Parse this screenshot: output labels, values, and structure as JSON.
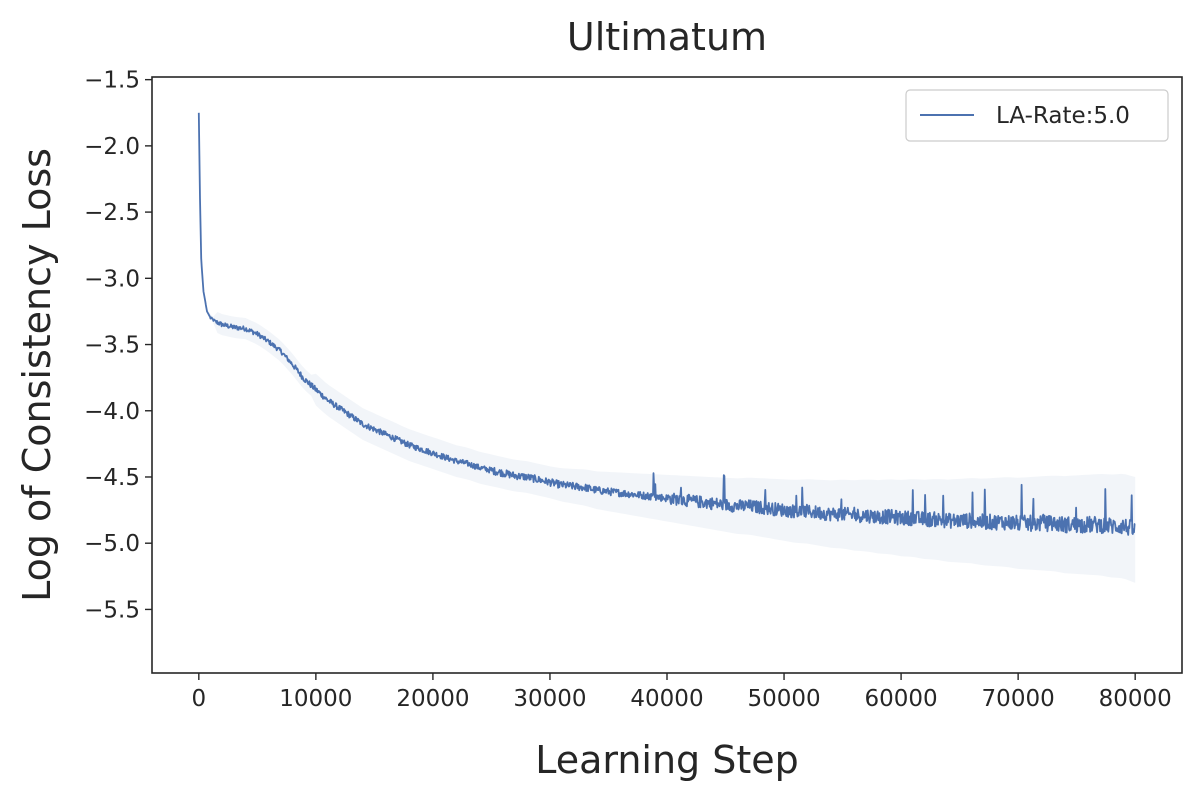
{
  "chart_data": {
    "type": "line",
    "title": "Ultimatum",
    "xlabel": "Learning Step",
    "ylabel": "Log of Consistency Loss",
    "xlim": [
      -4000,
      84000
    ],
    "ylim": [
      -5.98,
      -1.48
    ],
    "x_ticks": [
      0,
      10000,
      20000,
      30000,
      40000,
      50000,
      60000,
      70000,
      80000
    ],
    "x_tick_labels": [
      "0",
      "10000",
      "20000",
      "30000",
      "40000",
      "50000",
      "60000",
      "70000",
      "80000"
    ],
    "y_ticks": [
      -1.5,
      -2.0,
      -2.5,
      -3.0,
      -3.5,
      -4.0,
      -4.5,
      -5.0,
      -5.5
    ],
    "y_tick_labels": [
      "−1.5",
      "−2.0",
      "−2.5",
      "−3.0",
      "−3.5",
      "−4.0",
      "−4.5",
      "−5.0",
      "−5.5"
    ],
    "grid": false,
    "legend": {
      "position": "top-right"
    },
    "series": [
      {
        "name": "LA-Rate:5.0",
        "color": "#4c72b0",
        "shaded_band": true,
        "x": [
          0,
          100,
          200,
          400,
          700,
          1000,
          1500,
          2000,
          3000,
          4000,
          5000,
          6000,
          7000,
          8000,
          9000,
          10000,
          11000,
          12000,
          13000,
          14000,
          15000,
          16000,
          17000,
          18000,
          19000,
          20000,
          21000,
          22000,
          23000,
          24000,
          25000,
          26000,
          27000,
          28000,
          29000,
          30000,
          31000,
          32000,
          33000,
          34000,
          35000,
          36000,
          37000,
          38000,
          39000,
          40000,
          41000,
          42000,
          43000,
          44000,
          45000,
          46000,
          47000,
          48000,
          49000,
          50000,
          51000,
          52000,
          53000,
          54000,
          55000,
          56000,
          57000,
          58000,
          59000,
          60000,
          61000,
          62000,
          63000,
          64000,
          65000,
          66000,
          67000,
          68000,
          69000,
          70000,
          71000,
          72000,
          73000,
          74000,
          75000,
          76000,
          77000,
          78000,
          79000,
          80000
        ],
        "y": [
          -1.75,
          -2.4,
          -2.85,
          -3.1,
          -3.25,
          -3.3,
          -3.33,
          -3.35,
          -3.37,
          -3.38,
          -3.42,
          -3.48,
          -3.55,
          -3.65,
          -3.76,
          -3.84,
          -3.92,
          -3.98,
          -4.04,
          -4.1,
          -4.14,
          -4.18,
          -4.22,
          -4.26,
          -4.29,
          -4.32,
          -4.35,
          -4.38,
          -4.4,
          -4.43,
          -4.45,
          -4.47,
          -4.49,
          -4.5,
          -4.52,
          -4.54,
          -4.56,
          -4.57,
          -4.58,
          -4.6,
          -4.61,
          -4.62,
          -4.63,
          -4.64,
          -4.65,
          -4.66,
          -4.67,
          -4.68,
          -4.69,
          -4.7,
          -4.71,
          -4.72,
          -4.72,
          -4.73,
          -4.74,
          -4.75,
          -4.76,
          -4.76,
          -4.77,
          -4.78,
          -4.78,
          -4.79,
          -4.79,
          -4.8,
          -4.8,
          -4.81,
          -4.81,
          -4.82,
          -4.82,
          -4.83,
          -4.83,
          -4.83,
          -4.84,
          -4.84,
          -4.84,
          -4.85,
          -4.85,
          -4.85,
          -4.85,
          -4.86,
          -4.86,
          -4.86,
          -4.86,
          -4.87,
          -4.87,
          -4.9
        ]
      }
    ]
  }
}
